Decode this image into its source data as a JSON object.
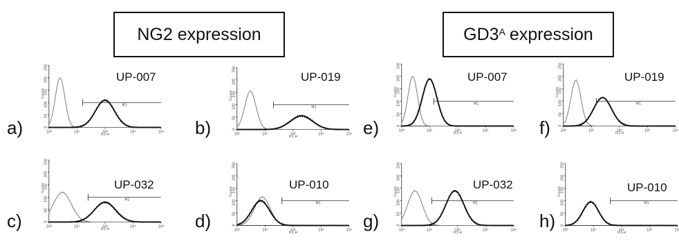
{
  "headers": {
    "ng2": {
      "main": "NG2 expression"
    },
    "gd3": {
      "main": "GD3",
      "sup": "A",
      "rest": "expression"
    }
  },
  "chart_data": {
    "type": "histogram",
    "x_axis": {
      "label": "FL1-H",
      "scale": "log",
      "range": [
        1,
        10000
      ],
      "ticks": [
        "10⁰",
        "10¹",
        "10²",
        "10³",
        "10⁴"
      ]
    },
    "y_axis": {
      "label": "Counts",
      "range": [
        0,
        250
      ],
      "ticks": [
        "0",
        "50",
        "100",
        "150",
        "200",
        "250"
      ]
    },
    "gate_label": "M1",
    "panels": [
      {
        "letter": "a)",
        "sample": "UP-007",
        "gate": [
          16,
          10000
        ],
        "control": {
          "peak_x": 2.5,
          "width": 0.17,
          "peak_y": 200
        },
        "stain": {
          "peak_x": 100,
          "width": 0.34,
          "peak_y": 110
        }
      },
      {
        "letter": "b)",
        "sample": "UP-019",
        "gate": [
          20,
          10000
        ],
        "control": {
          "peak_x": 3,
          "width": 0.2,
          "peak_y": 155
        },
        "stain": {
          "peak_x": 200,
          "width": 0.4,
          "peak_y": 55
        }
      },
      {
        "letter": "c)",
        "sample": "UP-032",
        "gate": [
          25,
          10000
        ],
        "control": {
          "peak_x": 3,
          "width": 0.32,
          "peak_y": 120
        },
        "stain": {
          "peak_x": 100,
          "width": 0.38,
          "peak_y": 80
        }
      },
      {
        "letter": "d)",
        "sample": "UP-010",
        "gate": [
          40,
          10000
        ],
        "control": {
          "peak_x": 8,
          "width": 0.28,
          "peak_y": 115
        },
        "stain": {
          "peak_x": 7,
          "width": 0.32,
          "peak_y": 100
        }
      },
      {
        "letter": "e)",
        "sample": "UP-007",
        "gate": [
          14,
          10000
        ],
        "control": {
          "peak_x": 2.5,
          "width": 0.17,
          "peak_y": 200
        },
        "stain": {
          "peak_x": 10,
          "width": 0.26,
          "peak_y": 190
        }
      },
      {
        "letter": "f)",
        "sample": "UP-019",
        "gate": [
          15,
          10000
        ],
        "control": {
          "peak_x": 2.8,
          "width": 0.18,
          "peak_y": 185
        },
        "stain": {
          "peak_x": 25,
          "width": 0.32,
          "peak_y": 115
        }
      },
      {
        "letter": "g)",
        "sample": "UP-032",
        "gate": [
          12,
          10000
        ],
        "control": {
          "peak_x": 3,
          "width": 0.26,
          "peak_y": 140
        },
        "stain": {
          "peak_x": 80,
          "width": 0.32,
          "peak_y": 140
        }
      },
      {
        "letter": "h)",
        "sample": "UP-010",
        "gate": [
          40,
          10000
        ],
        "control": {
          "peak_x": 8,
          "width": 0.28,
          "peak_y": 95
        },
        "stain": {
          "peak_x": 8,
          "width": 0.28,
          "peak_y": 95
        }
      }
    ]
  }
}
